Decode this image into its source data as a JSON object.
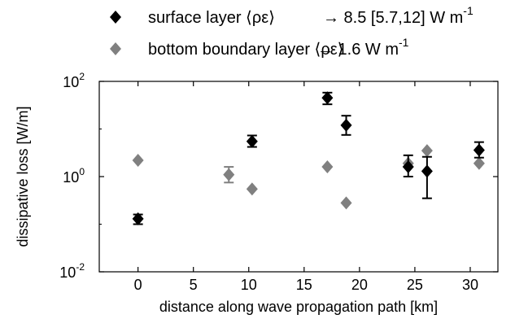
{
  "chart_data": {
    "type": "scatter",
    "xlabel": "distance along wave propagation path [km]",
    "ylabel": "dissipative loss [W/m]",
    "x_ticks": [
      0,
      5,
      10,
      15,
      20,
      25,
      30
    ],
    "x_tick_labels": [
      "0",
      "5",
      "10",
      "15",
      "20",
      "25",
      "30"
    ],
    "xlim": [
      -3.5,
      32.5
    ],
    "y_scale": "log",
    "ylim": [
      0.01,
      100
    ],
    "y_ticks": [
      0.01,
      1,
      100
    ],
    "y_tick_labels": [
      {
        "base": "10",
        "exp": "-2"
      },
      {
        "base": "10",
        "exp": "0"
      },
      {
        "base": "10",
        "exp": "2"
      }
    ],
    "legend_placement": "top, above plot",
    "series": [
      {
        "name": "surface layer ⟨ρε⟩",
        "summary": "→ 8.5 [5.7,12] W m",
        "summary_exp": "-1",
        "color": "#000000",
        "marker": "diamond",
        "points": [
          {
            "x": 0.0,
            "y": 0.13,
            "lo": 0.1,
            "hi": 0.16
          },
          {
            "x": 10.3,
            "y": 5.5,
            "lo": 4.2,
            "hi": 7.3
          },
          {
            "x": 17.1,
            "y": 45,
            "lo": 33,
            "hi": 58
          },
          {
            "x": 18.8,
            "y": 12,
            "lo": 7.5,
            "hi": 19
          },
          {
            "x": 24.4,
            "y": 1.6,
            "lo": 1.0,
            "hi": 2.8
          },
          {
            "x": 26.1,
            "y": 1.3,
            "lo": 0.35,
            "hi": 2.6
          },
          {
            "x": 30.8,
            "y": 3.6,
            "lo": 2.5,
            "hi": 5.3
          }
        ]
      },
      {
        "name": "bottom boundary layer ⟨ρε⟩",
        "summary": "→ 1.6 W m",
        "summary_exp": "-1",
        "color": "#808080",
        "marker": "diamond",
        "points": [
          {
            "x": 0.0,
            "y": 2.2
          },
          {
            "x": 8.2,
            "y": 1.1,
            "lo": 0.75,
            "hi": 1.6
          },
          {
            "x": 10.3,
            "y": 0.55
          },
          {
            "x": 17.1,
            "y": 1.6
          },
          {
            "x": 18.8,
            "y": 0.28
          },
          {
            "x": 24.4,
            "y": 1.9
          },
          {
            "x": 26.1,
            "y": 3.5
          },
          {
            "x": 30.8,
            "y": 1.9
          }
        ]
      }
    ]
  }
}
